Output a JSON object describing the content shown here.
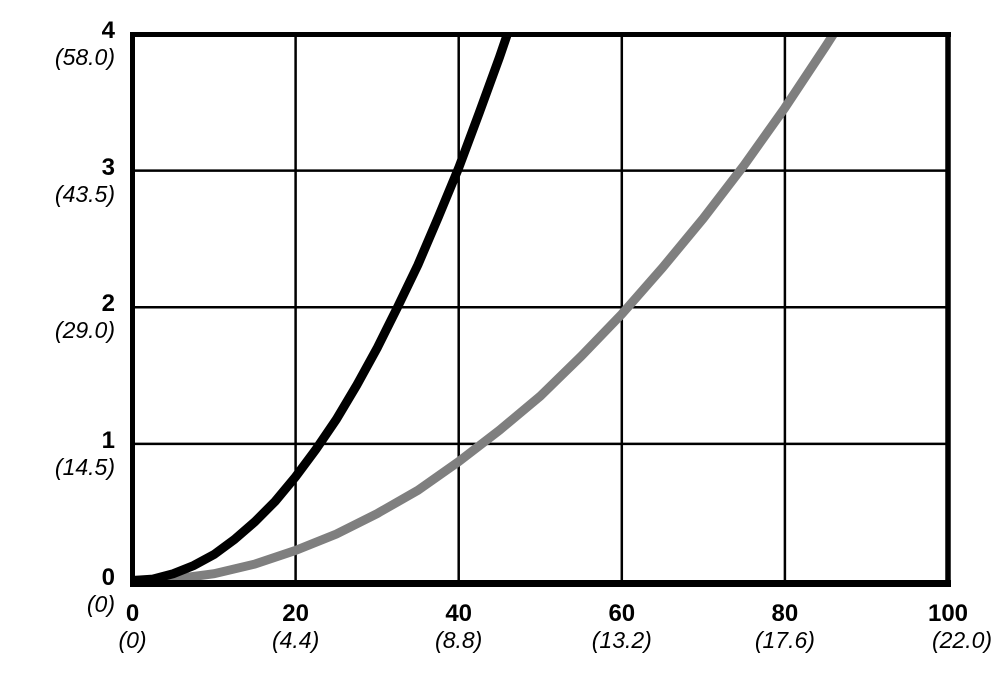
{
  "chart_data": {
    "type": "line",
    "title": "",
    "xlabel": "",
    "ylabel": "",
    "grid": true,
    "legend": "none",
    "colors": {
      "axis": "#000000",
      "grid": "#000000",
      "background": "#ffffff"
    },
    "x_axis": {
      "range": [
        0,
        100
      ],
      "ticks": [
        {
          "value": 0,
          "label": "0",
          "alt": "(0)"
        },
        {
          "value": 20,
          "label": "20",
          "alt": "(4.4)"
        },
        {
          "value": 40,
          "label": "40",
          "alt": "(8.8)"
        },
        {
          "value": 60,
          "label": "60",
          "alt": "(13.2)"
        },
        {
          "value": 80,
          "label": "80",
          "alt": "(17.6)"
        },
        {
          "value": 100,
          "label": "100",
          "alt": "(22.0)"
        }
      ]
    },
    "y_axis": {
      "range": [
        0,
        4
      ],
      "ticks": [
        {
          "value": 0,
          "label": "0",
          "alt": "(0)"
        },
        {
          "value": 1,
          "label": "1",
          "alt": "(14.5)"
        },
        {
          "value": 2,
          "label": "2",
          "alt": "(29.0)"
        },
        {
          "value": 3,
          "label": "3",
          "alt": "(43.5)"
        },
        {
          "value": 4,
          "label": "4",
          "alt": "(58.0)"
        }
      ]
    },
    "series": [
      {
        "name": "gray curve",
        "color": "#7f7f7f",
        "points": [
          [
            0,
            0
          ],
          [
            5,
            0.01
          ],
          [
            10,
            0.05
          ],
          [
            15,
            0.12
          ],
          [
            20,
            0.22
          ],
          [
            25,
            0.34
          ],
          [
            30,
            0.49
          ],
          [
            35,
            0.66
          ],
          [
            40,
            0.87
          ],
          [
            45,
            1.1
          ],
          [
            50,
            1.35
          ],
          [
            55,
            1.64
          ],
          [
            60,
            1.95
          ],
          [
            65,
            2.29
          ],
          [
            70,
            2.65
          ],
          [
            75,
            3.04
          ],
          [
            80,
            3.46
          ],
          [
            85,
            3.91
          ],
          [
            88,
            4.19
          ]
        ]
      },
      {
        "name": "black curve",
        "color": "#000000",
        "points": [
          [
            0,
            0
          ],
          [
            2.5,
            0.01
          ],
          [
            5,
            0.05
          ],
          [
            7.5,
            0.11
          ],
          [
            10,
            0.19
          ],
          [
            12.5,
            0.3
          ],
          [
            15,
            0.43
          ],
          [
            17.5,
            0.58
          ],
          [
            20,
            0.76
          ],
          [
            22.5,
            0.96
          ],
          [
            25,
            1.18
          ],
          [
            27.5,
            1.43
          ],
          [
            30,
            1.7
          ],
          [
            32.5,
            2.0
          ],
          [
            35,
            2.31
          ],
          [
            37.5,
            2.66
          ],
          [
            40,
            3.02
          ],
          [
            42.5,
            3.42
          ],
          [
            45,
            3.83
          ],
          [
            47,
            4.18
          ]
        ]
      }
    ]
  }
}
